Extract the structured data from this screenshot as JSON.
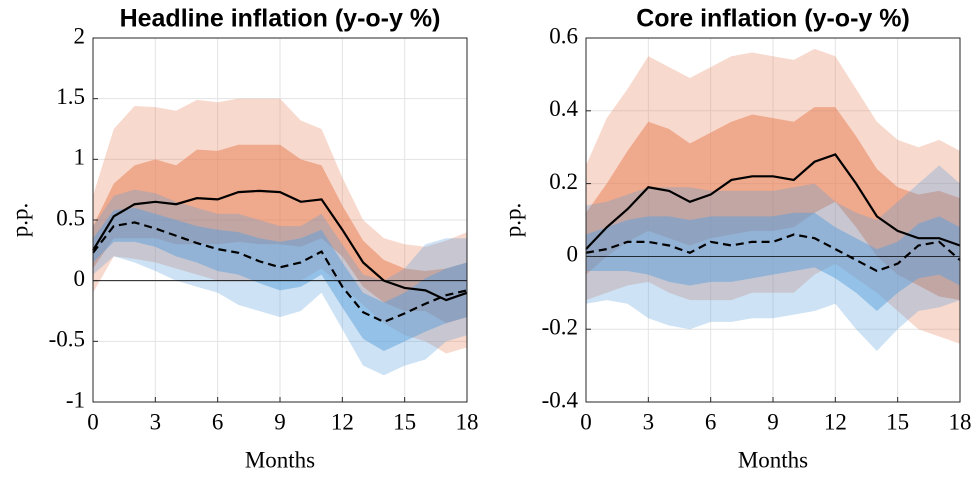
{
  "chart_data": [
    {
      "type": "line",
      "title": "Headline inflation (y-o-y %)",
      "xlabel": "Months",
      "ylabel": "p.p.",
      "x": [
        0,
        1,
        2,
        3,
        4,
        5,
        6,
        7,
        8,
        9,
        10,
        11,
        12,
        13,
        14,
        15,
        16,
        17,
        18
      ],
      "xlim": [
        0,
        18
      ],
      "xticks": [
        0,
        3,
        6,
        9,
        12,
        15,
        18
      ],
      "ylim": [
        -1,
        2
      ],
      "yticks": [
        -1,
        -0.5,
        0,
        0.5,
        1,
        1.5,
        2
      ],
      "grid": true,
      "bands": [
        {
          "color": "#e8825a",
          "opacity": 0.3,
          "upper": [
            0.7,
            1.25,
            1.44,
            1.43,
            1.4,
            1.49,
            1.47,
            1.5,
            1.5,
            1.5,
            1.32,
            1.25,
            0.85,
            0.5,
            0.35,
            0.3,
            0.28,
            0.33,
            0.4
          ],
          "lower": [
            -0.1,
            0.2,
            0.18,
            0.15,
            0.1,
            0.05,
            0,
            0,
            0,
            0,
            0,
            0.1,
            -0.05,
            -0.2,
            -0.35,
            -0.45,
            -0.5,
            -0.6,
            -0.55
          ]
        },
        {
          "color": "#e8825a",
          "opacity": 0.55,
          "upper": [
            0.45,
            0.8,
            0.95,
            1,
            0.95,
            1.08,
            1.07,
            1.12,
            1.12,
            1.12,
            1,
            0.95,
            0.62,
            0.33,
            0.17,
            0.1,
            0.08,
            0.1,
            0.15
          ],
          "lower": [
            0.1,
            0.35,
            0.35,
            0.35,
            0.3,
            0.3,
            0.3,
            0.32,
            0.3,
            0.3,
            0.28,
            0.35,
            0.2,
            -0.05,
            -0.18,
            -0.25,
            -0.25,
            -0.35,
            -0.3
          ]
        },
        {
          "color": "#5b9fdc",
          "opacity": 0.3,
          "upper": [
            0.45,
            0.7,
            0.75,
            0.72,
            0.65,
            0.6,
            0.55,
            0.55,
            0.5,
            0.45,
            0.45,
            0.55,
            0.3,
            0.05,
            0,
            0.1,
            0.3,
            0.35,
            0.35
          ],
          "lower": [
            0.05,
            0.2,
            0.15,
            0.08,
            0,
            -0.05,
            -0.1,
            -0.2,
            -0.25,
            -0.3,
            -0.25,
            -0.1,
            -0.4,
            -0.7,
            -0.78,
            -0.7,
            -0.65,
            -0.5,
            -0.45
          ]
        },
        {
          "color": "#5b9fdc",
          "opacity": 0.5,
          "upper": [
            0.35,
            0.58,
            0.6,
            0.55,
            0.5,
            0.45,
            0.42,
            0.4,
            0.35,
            0.32,
            0.35,
            0.42,
            0.15,
            -0.1,
            -0.18,
            -0.1,
            0.02,
            0.1,
            0.15
          ],
          "lower": [
            0.15,
            0.32,
            0.32,
            0.28,
            0.2,
            0.15,
            0.08,
            0.05,
            -0.02,
            -0.08,
            -0.05,
            0.05,
            -0.22,
            -0.48,
            -0.58,
            -0.5,
            -0.42,
            -0.35,
            -0.3
          ]
        }
      ],
      "series": [
        {
          "color": "#000000",
          "style": "solid",
          "values": [
            0.25,
            0.53,
            0.63,
            0.65,
            0.63,
            0.68,
            0.67,
            0.73,
            0.74,
            0.73,
            0.65,
            0.67,
            0.42,
            0.15,
            0,
            -0.06,
            -0.08,
            -0.16,
            -0.1
          ]
        },
        {
          "color": "#000000",
          "style": "dashed",
          "values": [
            0.23,
            0.45,
            0.48,
            0.43,
            0.37,
            0.31,
            0.26,
            0.23,
            0.16,
            0.11,
            0.15,
            0.24,
            -0.05,
            -0.26,
            -0.34,
            -0.27,
            -0.19,
            -0.12,
            -0.08
          ]
        }
      ]
    },
    {
      "type": "line",
      "title": "Core inflation (y-o-y %)",
      "xlabel": "Months",
      "ylabel": "p.p.",
      "x": [
        0,
        1,
        2,
        3,
        4,
        5,
        6,
        7,
        8,
        9,
        10,
        11,
        12,
        13,
        14,
        15,
        16,
        17,
        18
      ],
      "xlim": [
        0,
        18
      ],
      "xticks": [
        0,
        3,
        6,
        9,
        12,
        15,
        18
      ],
      "ylim": [
        -0.4,
        0.6
      ],
      "yticks": [
        -0.4,
        -0.2,
        0,
        0.2,
        0.4,
        0.6
      ],
      "grid": true,
      "bands": [
        {
          "color": "#e8825a",
          "opacity": 0.3,
          "upper": [
            0.25,
            0.38,
            0.46,
            0.55,
            0.52,
            0.49,
            0.52,
            0.55,
            0.56,
            0.55,
            0.54,
            0.57,
            0.55,
            0.46,
            0.37,
            0.32,
            0.3,
            0.32,
            0.29
          ],
          "lower": [
            -0.12,
            -0.1,
            -0.08,
            -0.07,
            -0.1,
            -0.12,
            -0.12,
            -0.12,
            -0.1,
            -0.1,
            -0.1,
            -0.05,
            -0.02,
            -0.06,
            -0.1,
            -0.15,
            -0.2,
            -0.22,
            -0.24
          ]
        },
        {
          "color": "#e8825a",
          "opacity": 0.55,
          "upper": [
            0.12,
            0.2,
            0.29,
            0.37,
            0.35,
            0.31,
            0.34,
            0.37,
            0.39,
            0.38,
            0.37,
            0.41,
            0.41,
            0.33,
            0.24,
            0.19,
            0.17,
            0.18,
            0.16
          ],
          "lower": [
            -0.05,
            0,
            0.04,
            0.07,
            0.05,
            0.03,
            0.05,
            0.06,
            0.07,
            0.07,
            0.08,
            0.12,
            0.15,
            0.08,
            0,
            -0.05,
            -0.08,
            -0.11,
            -0.12
          ]
        },
        {
          "color": "#5b9fdc",
          "opacity": 0.3,
          "upper": [
            0.14,
            0.15,
            0.17,
            0.19,
            0.19,
            0.19,
            0.18,
            0.18,
            0.18,
            0.18,
            0.19,
            0.2,
            0.15,
            0.12,
            0.1,
            0.15,
            0.2,
            0.25,
            0.2
          ],
          "lower": [
            -0.13,
            -0.12,
            -0.13,
            -0.17,
            -0.19,
            -0.2,
            -0.18,
            -0.18,
            -0.17,
            -0.17,
            -0.16,
            -0.15,
            -0.13,
            -0.2,
            -0.26,
            -0.2,
            -0.15,
            -0.14,
            -0.12
          ]
        },
        {
          "color": "#5b9fdc",
          "opacity": 0.5,
          "upper": [
            0.06,
            0.08,
            0.1,
            0.11,
            0.11,
            0.1,
            0.11,
            0.11,
            0.11,
            0.11,
            0.12,
            0.12,
            0.08,
            0.05,
            0.02,
            0.04,
            0.09,
            0.11,
            0.08
          ],
          "lower": [
            -0.04,
            -0.04,
            -0.04,
            -0.05,
            -0.07,
            -0.08,
            -0.07,
            -0.07,
            -0.06,
            -0.05,
            -0.04,
            -0.03,
            -0.06,
            -0.1,
            -0.15,
            -0.1,
            -0.06,
            -0.05,
            -0.08
          ]
        }
      ],
      "series": [
        {
          "color": "#000000",
          "style": "solid",
          "values": [
            0.02,
            0.08,
            0.13,
            0.19,
            0.18,
            0.15,
            0.17,
            0.21,
            0.22,
            0.22,
            0.21,
            0.26,
            0.28,
            0.2,
            0.11,
            0.07,
            0.05,
            0.05,
            0.03
          ]
        },
        {
          "color": "#000000",
          "style": "dashed",
          "values": [
            0.01,
            0.02,
            0.04,
            0.04,
            0.03,
            0.01,
            0.04,
            0.03,
            0.04,
            0.04,
            0.06,
            0.05,
            0.02,
            -0.01,
            -0.04,
            -0.02,
            0.03,
            0.04,
            -0.01
          ]
        }
      ]
    }
  ]
}
